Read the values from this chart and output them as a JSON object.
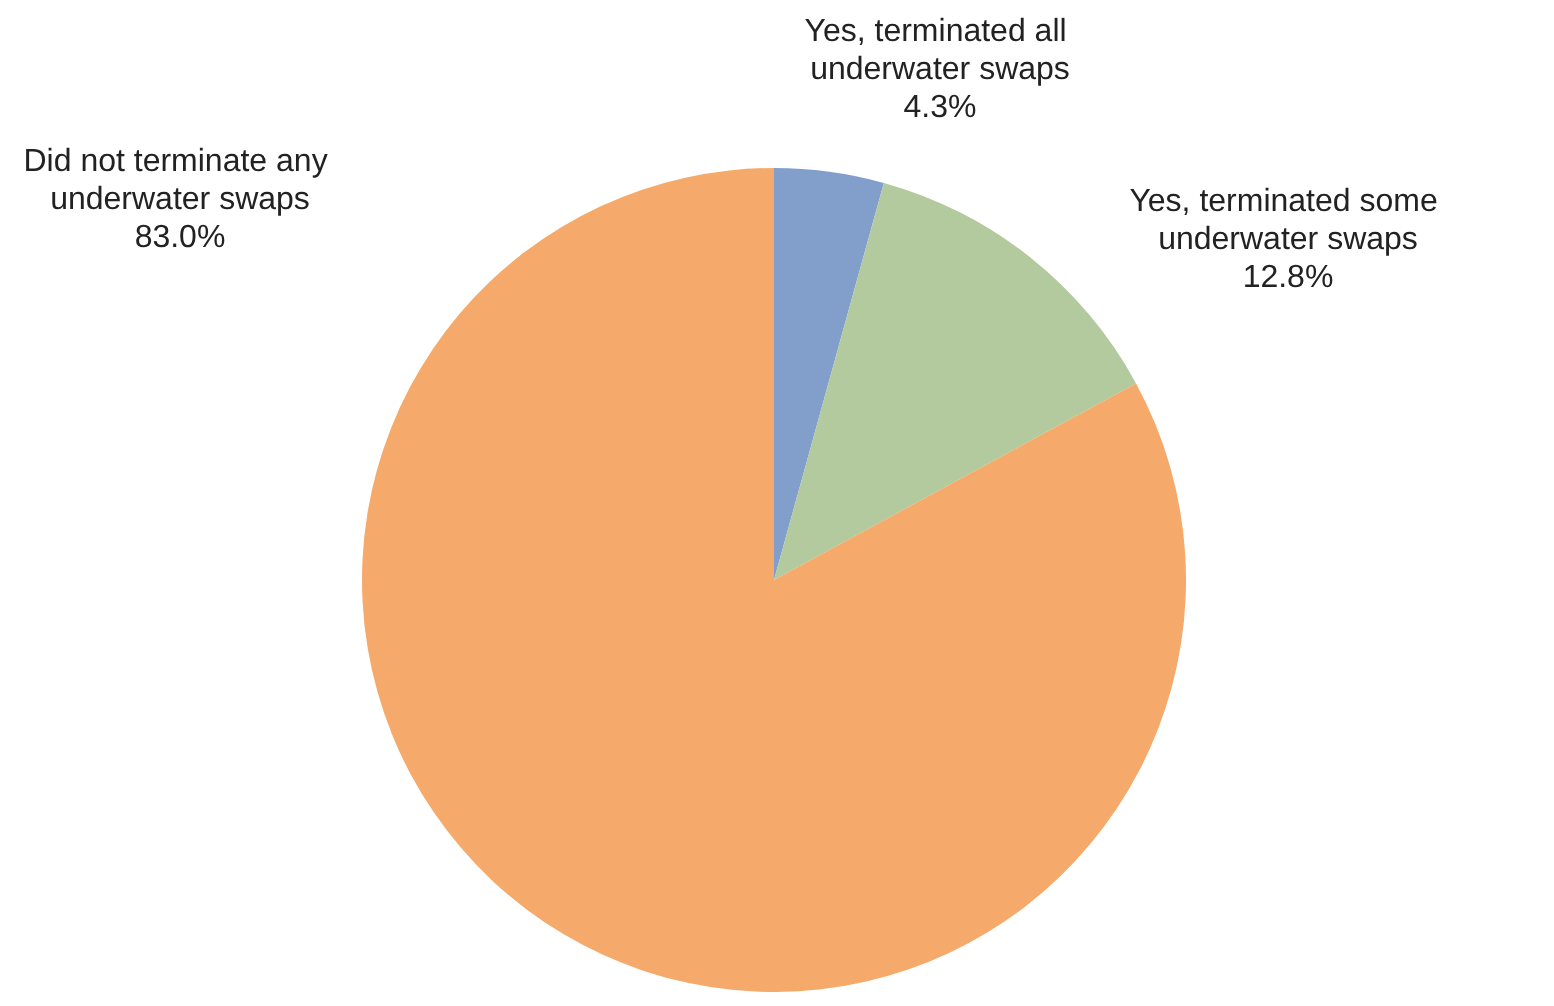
{
  "chart_data": {
    "type": "pie",
    "categories": [
      "Yes, terminated all underwater swaps",
      "Yes, terminated some underwater swaps",
      "Did not terminate any underwater swaps"
    ],
    "values": [
      4.3,
      12.8,
      83.0
    ],
    "colors": [
      "#829fcb",
      "#b3c99e",
      "#f5a96a"
    ],
    "value_labels": [
      "4.3%",
      "12.8%",
      "83.0%"
    ]
  }
}
